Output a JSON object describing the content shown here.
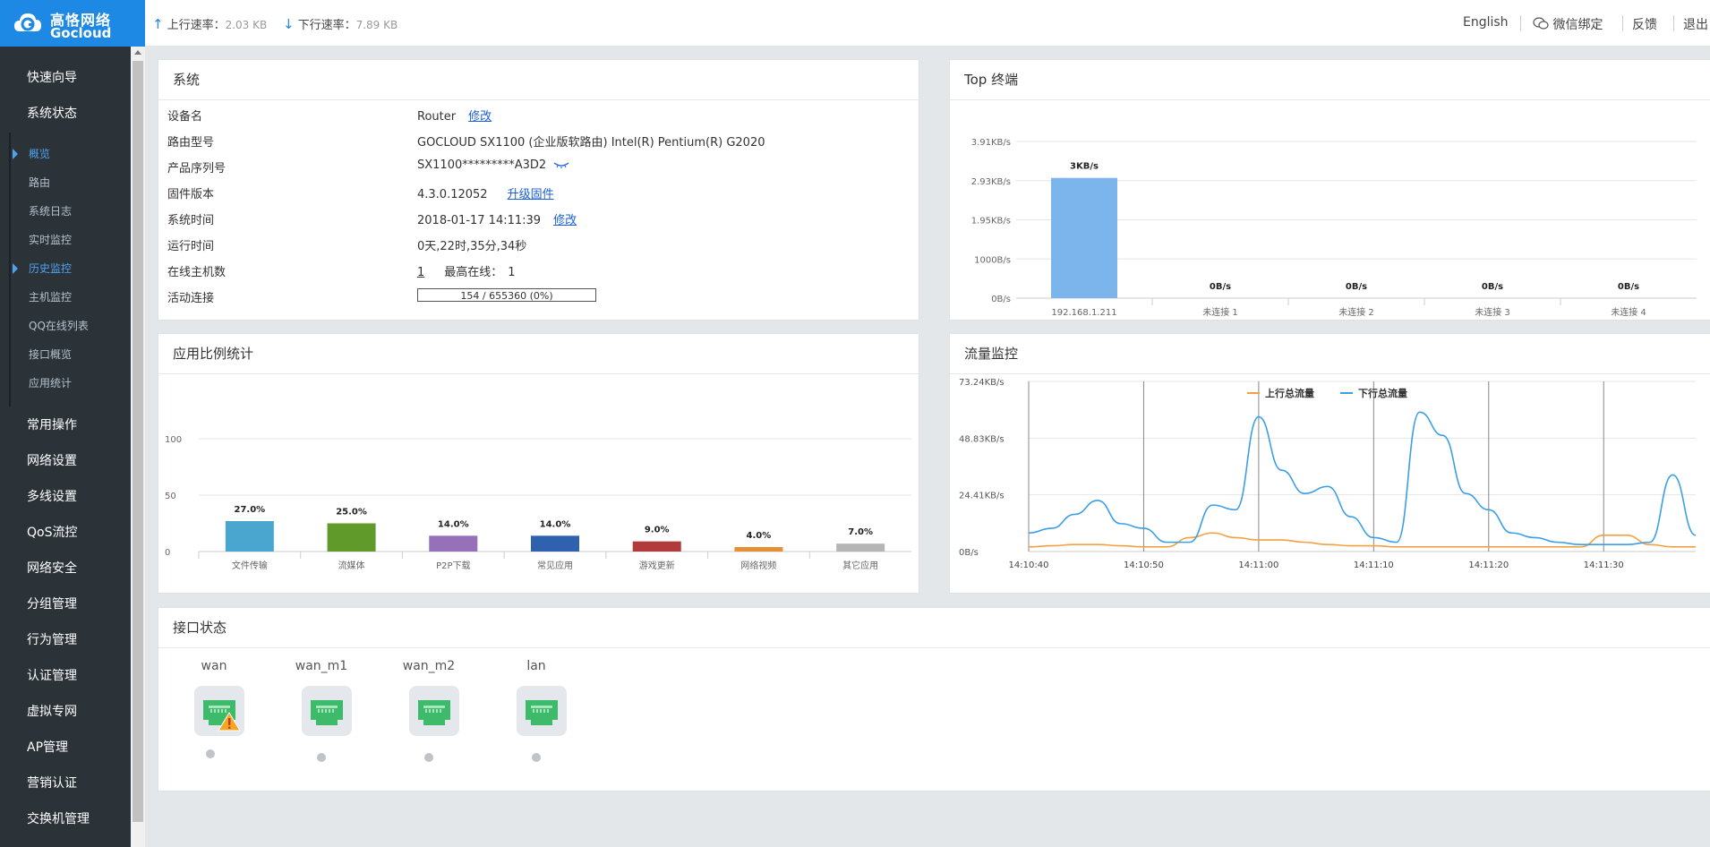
{
  "brand": {
    "name_cn": "高恪网络",
    "name_en": "Gocloud"
  },
  "topbar": {
    "upload_label": "上行速率：",
    "upload_value": "2.03 KB",
    "download_label": "下行速率：",
    "download_value": "7.89 KB",
    "english": "English",
    "wechat": "微信绑定",
    "feedback": "反馈",
    "logout": "退出"
  },
  "sidebar": {
    "items": [
      {
        "label": "快速向导"
      },
      {
        "label": "系统状态"
      },
      {
        "label": "常用操作"
      },
      {
        "label": "网络设置"
      },
      {
        "label": "多线设置"
      },
      {
        "label": "QoS流控"
      },
      {
        "label": "网络安全"
      },
      {
        "label": "分组管理"
      },
      {
        "label": "行为管理"
      },
      {
        "label": "认证管理"
      },
      {
        "label": "虚拟专网"
      },
      {
        "label": "AP管理"
      },
      {
        "label": "营销认证"
      },
      {
        "label": "交换机管理"
      }
    ],
    "sub_items": [
      {
        "label": "概览",
        "active": true
      },
      {
        "label": "路由"
      },
      {
        "label": "系统日志"
      },
      {
        "label": "实时监控"
      },
      {
        "label": "历史监控",
        "active": true
      },
      {
        "label": "主机监控"
      },
      {
        "label": "QQ在线列表"
      },
      {
        "label": "接口概览"
      },
      {
        "label": "应用统计"
      }
    ]
  },
  "system": {
    "title": "系统",
    "device_name_label": "设备名",
    "device_name": "Router",
    "device_name_edit": "修改",
    "model_label": "路由型号",
    "model": "GOCLOUD SX1100 (企业版软路由) Intel(R) Pentium(R) G2020",
    "serial_label": "产品序列号",
    "serial": "SX1100*********A3D2",
    "firmware_label": "固件版本",
    "firmware": "4.3.0.12052",
    "firmware_upgrade": "升级固件",
    "time_label": "系统时间",
    "time": "2018-01-17 14:11:39",
    "time_edit": "修改",
    "uptime_label": "运行时间",
    "uptime": "0天,22时,35分,34秒",
    "hosts_label": "在线主机数",
    "hosts": "1",
    "max_online_label": "最高在线：",
    "max_online": "1",
    "connections_label": "活动连接",
    "connections": "154 / 655360 (0%)"
  },
  "top_terminals": {
    "title": "Top 终端",
    "chart_data": {
      "type": "bar",
      "categories": [
        "192.168.1.211",
        "未连接 1",
        "未连接 2",
        "未连接 3",
        "未连接 4"
      ],
      "values": [
        3,
        0,
        0,
        0,
        0
      ],
      "data_labels": [
        "3KB/s",
        "0B/s",
        "0B/s",
        "0B/s",
        "0B/s"
      ],
      "yticks": [
        "0B/s",
        "1000B/s",
        "1.95KB/s",
        "2.93KB/s",
        "3.91KB/s"
      ],
      "ylim": [
        0,
        3.91
      ],
      "color": "#7cb5ec"
    }
  },
  "app_ratio": {
    "title": "应用比例统计",
    "chart_data": {
      "type": "bar",
      "categories": [
        "文件传输",
        "流媒体",
        "P2P下载",
        "常见应用",
        "游戏更新",
        "网络视频",
        "其它应用"
      ],
      "values": [
        27.0,
        25.0,
        14.0,
        14.0,
        9.0,
        4.0,
        7.0
      ],
      "data_labels": [
        "27.0%",
        "25.0%",
        "14.0%",
        "14.0%",
        "9.0%",
        "4.0%",
        "7.0%"
      ],
      "colors": [
        "#4ba6cf",
        "#5f9a2b",
        "#9670b8",
        "#3061ae",
        "#b13a3a",
        "#e39036",
        "#b5b5b5"
      ],
      "yticks": [
        "0",
        "50",
        "100"
      ],
      "ylim": [
        0,
        100
      ]
    }
  },
  "traffic": {
    "title": "流量监控",
    "chart_data": {
      "type": "line",
      "x": [
        "14:10:40",
        "14:10:42",
        "14:10:44",
        "14:10:46",
        "14:10:48",
        "14:10:50",
        "14:10:52",
        "14:10:54",
        "14:10:56",
        "14:10:58",
        "14:11:00",
        "14:11:02",
        "14:11:04",
        "14:11:06",
        "14:11:08",
        "14:11:10",
        "14:11:12",
        "14:11:14",
        "14:11:16",
        "14:11:18",
        "14:11:20",
        "14:11:22",
        "14:11:24",
        "14:11:26",
        "14:11:28",
        "14:11:30",
        "14:11:32",
        "14:11:34",
        "14:11:36",
        "14:11:38"
      ],
      "xticks": [
        "14:10:40",
        "14:10:50",
        "14:11:00",
        "14:11:10",
        "14:11:20",
        "14:11:30"
      ],
      "yticks": [
        "0B/s",
        "24.41KB/s",
        "48.83KB/s",
        "73.24KB/s"
      ],
      "ylim": [
        0,
        73.24
      ],
      "legend_position": "top-center",
      "series": [
        {
          "name": "上行总流量",
          "color": "#f5a040",
          "values": [
            2,
            2.5,
            3,
            3,
            2.5,
            2,
            2,
            6,
            8,
            6,
            5,
            5,
            4,
            3,
            2.5,
            2.5,
            2,
            2,
            2,
            2,
            2,
            2,
            2,
            2,
            2,
            7,
            7,
            3,
            2,
            2
          ]
        },
        {
          "name": "下行总流量",
          "color": "#3a9ee8",
          "values": [
            8,
            10,
            16,
            22,
            12,
            10,
            4,
            4,
            20,
            18,
            58,
            35,
            25,
            28,
            15,
            6,
            4,
            60,
            50,
            25,
            18,
            8,
            6,
            4,
            3,
            3,
            3,
            4,
            33,
            7
          ]
        }
      ]
    }
  },
  "interfaces": {
    "title": "接口状态",
    "items": [
      {
        "name": "wan",
        "warning": true
      },
      {
        "name": "wan_m1",
        "warning": false
      },
      {
        "name": "wan_m2",
        "warning": false
      },
      {
        "name": "lan",
        "warning": false
      }
    ]
  }
}
